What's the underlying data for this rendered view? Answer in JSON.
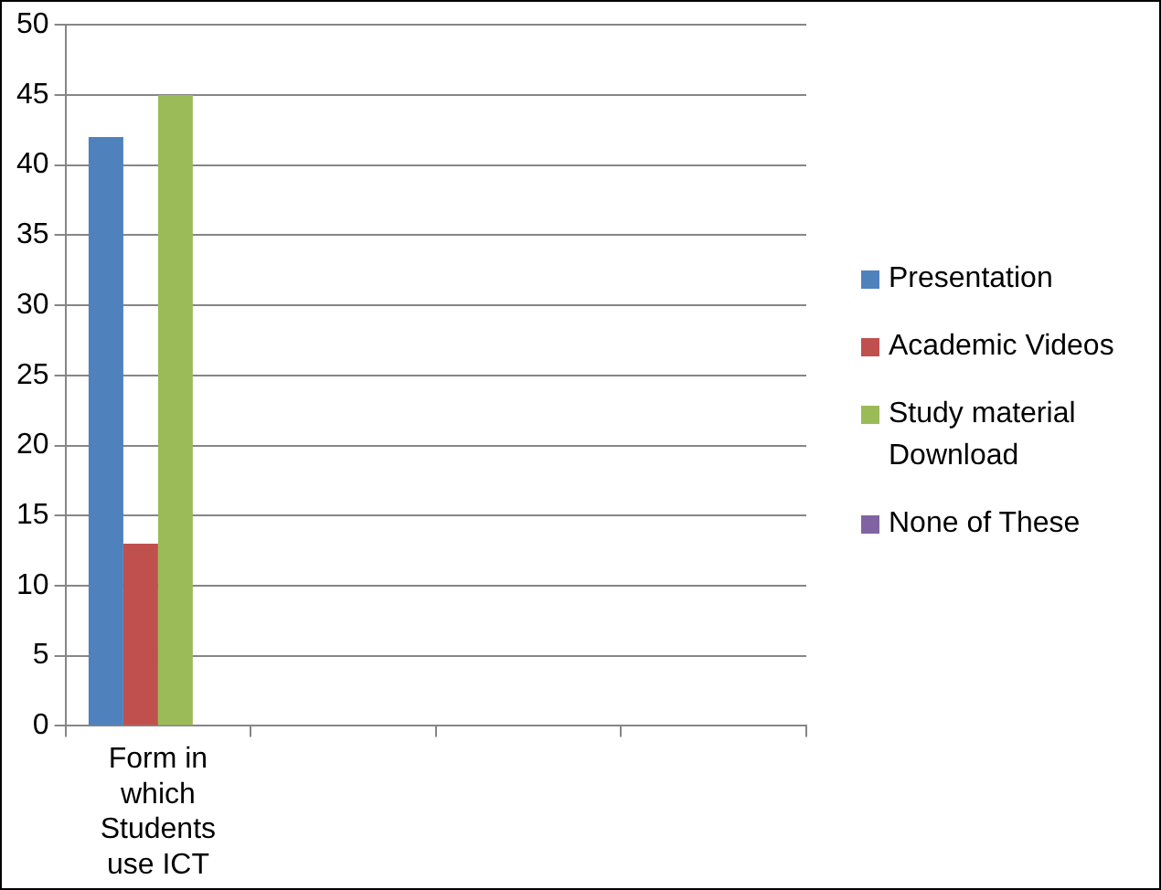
{
  "chart_data": {
    "type": "bar",
    "categories": [
      "Form in which Students use ICT",
      null,
      null,
      null
    ],
    "series": [
      {
        "name": "Presentation",
        "color": "#4f81bd",
        "values": [
          42,
          null,
          null,
          null
        ]
      },
      {
        "name": "Academic Videos",
        "color": "#c0504d",
        "values": [
          13,
          null,
          null,
          null
        ]
      },
      {
        "name": "Study material Download",
        "color": "#9bbb59",
        "values": [
          45,
          null,
          null,
          null
        ]
      },
      {
        "name": "None of These",
        "color": "#8064a2",
        "values": [
          0,
          null,
          null,
          null
        ]
      }
    ],
    "ylim": [
      0,
      50
    ],
    "yticks": [
      0,
      5,
      10,
      15,
      20,
      25,
      30,
      35,
      40,
      45,
      50
    ],
    "grid": "y",
    "legend": "right"
  }
}
